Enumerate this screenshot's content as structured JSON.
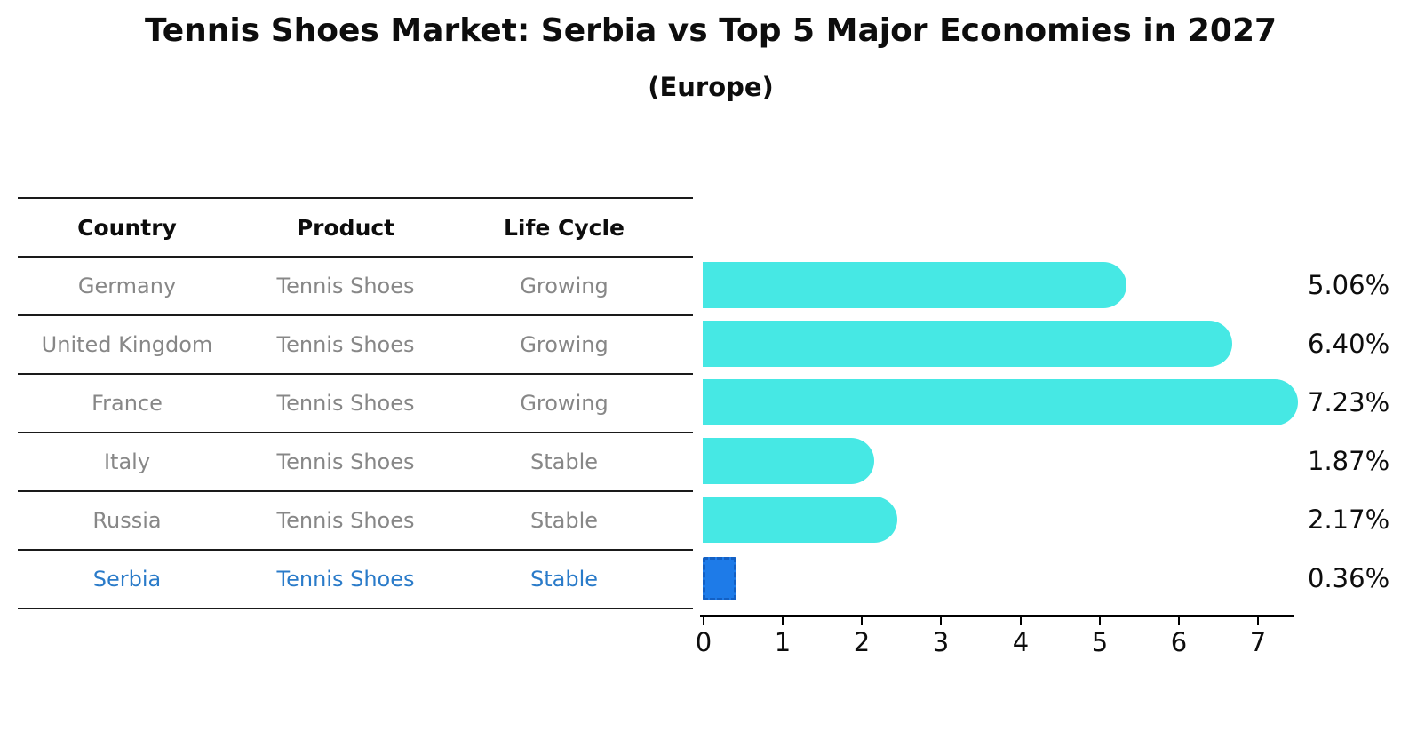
{
  "title": "Tennis Shoes Market: Serbia vs Top 5 Major Economies in 2027",
  "subtitle": "(Europe)",
  "colors": {
    "bar_default": "#46E8E4",
    "bar_highlight": "#1E7BE8",
    "bar_highlight_border": "#1360C4",
    "row_text": "#878787",
    "highlight_text": "#2A7BC9",
    "table_line": "#1a1a1a",
    "axis": "#000000"
  },
  "table": {
    "headers": [
      "Country",
      "Product",
      "Life Cycle"
    ],
    "rows": [
      {
        "country": "Germany",
        "product": "Tennis Shoes",
        "life_cycle": "Growing",
        "highlighted": false
      },
      {
        "country": "United Kingdom",
        "product": "Tennis Shoes",
        "life_cycle": "Growing",
        "highlighted": false
      },
      {
        "country": "France",
        "product": "Tennis Shoes",
        "life_cycle": "Growing",
        "highlighted": false
      },
      {
        "country": "Italy",
        "product": "Tennis Shoes",
        "life_cycle": "Stable",
        "highlighted": false
      },
      {
        "country": "Russia",
        "product": "Tennis Shoes",
        "life_cycle": "Stable",
        "highlighted": false
      },
      {
        "country": "Serbia",
        "product": "Tennis Shoes",
        "life_cycle": "Stable",
        "highlighted": true
      }
    ]
  },
  "chart_data": {
    "type": "bar",
    "orientation": "horizontal",
    "title": "Tennis Shoes Market: Serbia vs Top 5 Major Economies in 2027",
    "subtitle": "(Europe)",
    "categories": [
      "Germany",
      "United Kingdom",
      "France",
      "Italy",
      "Russia",
      "Serbia"
    ],
    "values": [
      5.06,
      6.4,
      7.23,
      1.87,
      2.17,
      0.36
    ],
    "value_labels": [
      "5.06%",
      "6.40%",
      "7.23%",
      "1.87%",
      "2.17%",
      "0.36%"
    ],
    "highlight_category": "Serbia",
    "x_ticks": [
      0,
      1,
      2,
      3,
      4,
      5,
      6,
      7
    ],
    "xlim": [
      0,
      7.45
    ],
    "grid": false,
    "legend": false
  }
}
